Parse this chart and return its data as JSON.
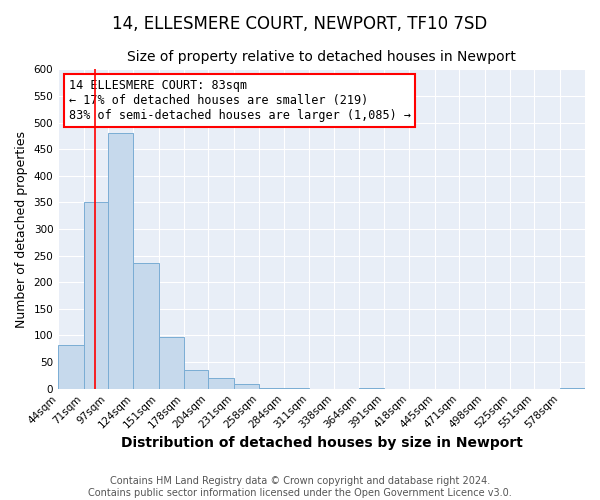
{
  "title": "14, ELLESMERE COURT, NEWPORT, TF10 7SD",
  "subtitle": "Size of property relative to detached houses in Newport",
  "xlabel": "Distribution of detached houses by size in Newport",
  "ylabel": "Number of detached properties",
  "bar_heights": [
    83,
    350,
    480,
    237,
    97,
    35,
    20,
    8,
    2,
    1,
    0,
    0,
    1,
    0,
    0,
    0,
    0,
    0,
    0,
    0,
    2
  ],
  "bar_left_edges": [
    44,
    71,
    97,
    124,
    151,
    178,
    204,
    231,
    258,
    284,
    311,
    338,
    364,
    391,
    418,
    445,
    471,
    498,
    525,
    551,
    578
  ],
  "bar_widths": [
    27,
    26,
    27,
    27,
    27,
    26,
    27,
    27,
    26,
    27,
    27,
    26,
    27,
    27,
    27,
    26,
    27,
    27,
    26,
    27,
    27
  ],
  "x_tick_labels": [
    "44sqm",
    "71sqm",
    "97sqm",
    "124sqm",
    "151sqm",
    "178sqm",
    "204sqm",
    "231sqm",
    "258sqm",
    "284sqm",
    "311sqm",
    "338sqm",
    "364sqm",
    "391sqm",
    "418sqm",
    "445sqm",
    "471sqm",
    "498sqm",
    "525sqm",
    "551sqm",
    "578sqm"
  ],
  "x_tick_positions": [
    44,
    71,
    97,
    124,
    151,
    178,
    204,
    231,
    258,
    284,
    311,
    338,
    364,
    391,
    418,
    445,
    471,
    498,
    525,
    551,
    578
  ],
  "ylim": [
    0,
    600
  ],
  "yticks": [
    0,
    50,
    100,
    150,
    200,
    250,
    300,
    350,
    400,
    450,
    500,
    550,
    600
  ],
  "bar_color": "#c6d9ec",
  "bar_edge_color": "#7aadd4",
  "red_line_x": 83,
  "annotation_title": "14 ELLESMERE COURT: 83sqm",
  "annotation_line1": "← 17% of detached houses are smaller (219)",
  "annotation_line2": "83% of semi-detached houses are larger (1,085) →",
  "footer_line1": "Contains HM Land Registry data © Crown copyright and database right 2024.",
  "footer_line2": "Contains public sector information licensed under the Open Government Licence v3.0.",
  "background_color": "#ffffff",
  "plot_bg_color": "#e8eef7",
  "grid_color": "#ffffff",
  "title_fontsize": 12,
  "subtitle_fontsize": 10,
  "xlabel_fontsize": 10,
  "ylabel_fontsize": 9,
  "tick_fontsize": 7.5,
  "footer_fontsize": 7,
  "ann_fontsize": 8.5
}
